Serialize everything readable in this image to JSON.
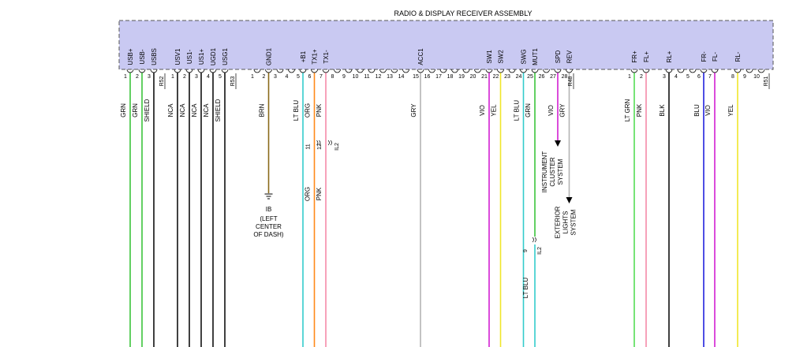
{
  "title": "RADIO & DISPLAY RECEIVER ASSEMBLY",
  "wire_colors": {
    "GRN": "#3cc43c",
    "LT GRN": "#55dd55",
    "BLK": "#111111",
    "BRN": "#8a6a1a",
    "LT BLU": "#33cccc",
    "ORG": "#ff8a1a",
    "PNK": "#f58aa8",
    "GRY": "#b4b4b4",
    "VIO": "#d21fd2",
    "YEL": "#f0e62a",
    "BLU": "#2222dd"
  },
  "connectors": {
    "R52": {
      "label": "R52"
    },
    "R53": {
      "label": "R53"
    },
    "R48": {
      "label": "R48"
    },
    "R51": {
      "label": "R51"
    },
    "IL2": {
      "label": "IL2"
    }
  },
  "pins_left": [
    {
      "num": "1",
      "name": "USB+",
      "color": "GRN"
    },
    {
      "num": "2",
      "name": "USB-",
      "color": "GRN"
    },
    {
      "num": "3",
      "name": "USBS",
      "color": "SHIELD"
    },
    {
      "num": "1",
      "name": "USV1",
      "color": "NCA"
    },
    {
      "num": "2",
      "name": "US1-",
      "color": "NCA"
    },
    {
      "num": "3",
      "name": "US1+",
      "color": "NCA"
    },
    {
      "num": "4",
      "name": "UGD1",
      "color": "NCA"
    },
    {
      "num": "5",
      "name": "USG1",
      "color": "SHIELD"
    }
  ],
  "pins_mid": [
    {
      "num": "1",
      "name": ""
    },
    {
      "num": "2",
      "name": "GND1",
      "color": "BRN"
    },
    {
      "num": "3",
      "name": ""
    },
    {
      "num": "4",
      "name": ""
    },
    {
      "num": "5",
      "name": "+B1",
      "color": "LT BLU"
    },
    {
      "num": "6",
      "name": "TX1+",
      "color": "ORG"
    },
    {
      "num": "7",
      "name": "TX1-",
      "color": "PNK"
    },
    {
      "num": "8",
      "name": ""
    },
    {
      "num": "9",
      "name": ""
    },
    {
      "num": "10",
      "name": ""
    },
    {
      "num": "11",
      "name": ""
    },
    {
      "num": "12",
      "name": ""
    },
    {
      "num": "13",
      "name": ""
    },
    {
      "num": "14",
      "name": ""
    },
    {
      "num": "15",
      "name": "ACC1",
      "color": "GRY"
    },
    {
      "num": "16",
      "name": ""
    },
    {
      "num": "17",
      "name": ""
    },
    {
      "num": "18",
      "name": ""
    },
    {
      "num": "19",
      "name": ""
    },
    {
      "num": "20",
      "name": ""
    },
    {
      "num": "21",
      "name": "SW1",
      "color": "VIO"
    },
    {
      "num": "22",
      "name": "SW2",
      "color": "YEL"
    },
    {
      "num": "23",
      "name": ""
    },
    {
      "num": "24",
      "name": "SWG",
      "color": "LT BLU"
    },
    {
      "num": "25",
      "name": "MUT1",
      "color": "GRN"
    },
    {
      "num": "26",
      "name": ""
    },
    {
      "num": "27",
      "name": "SPD",
      "color": "VIO"
    },
    {
      "num": "28",
      "name": "REV",
      "color": "GRY"
    }
  ],
  "pins_right": [
    {
      "num": "1",
      "name": "FR+",
      "color": "LT GRN"
    },
    {
      "num": "2",
      "name": "FL+",
      "color": "PNK"
    },
    {
      "num": "3",
      "name": "RL+",
      "color": "BLK"
    },
    {
      "num": "4",
      "name": ""
    },
    {
      "num": "5",
      "name": ""
    },
    {
      "num": "6",
      "name": "FR-",
      "color": "BLU"
    },
    {
      "num": "7",
      "name": "FL-",
      "color": "VIO"
    },
    {
      "num": "8",
      "name": "RL-",
      "color": "YEL"
    },
    {
      "num": "9",
      "name": ""
    },
    {
      "num": "10",
      "name": ""
    }
  ],
  "inline_pins": {
    "orange": "11",
    "pink": "12",
    "mut": "9"
  },
  "lower_colors": {
    "orange": "ORG",
    "pink": "PNK",
    "mut": "LT BLU"
  },
  "ground": {
    "label": "IB",
    "desc": [
      "(LEFT",
      "CENTER",
      "OF DASH)"
    ]
  },
  "destinations": {
    "spd": [
      "INSTRUMENT",
      "CLUSTER",
      "SYSTEM"
    ],
    "rev": [
      "EXTERIOR",
      "LIGHTS",
      "SYSTEM"
    ]
  }
}
